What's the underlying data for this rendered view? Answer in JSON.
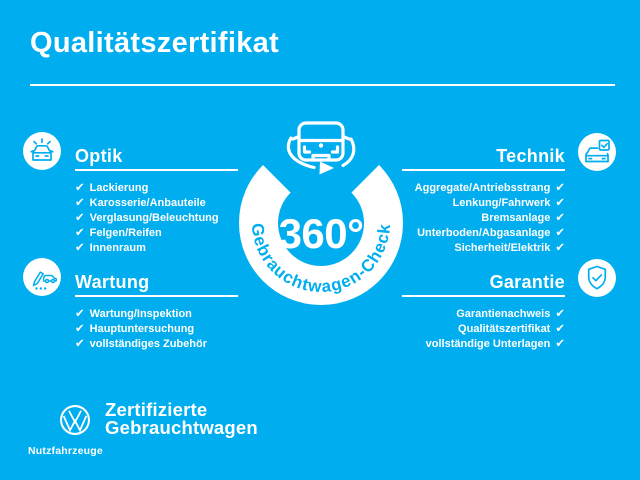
{
  "theme": {
    "background": "#00AEEF",
    "text": "#FFFFFF",
    "icon_stroke": "#00AEEF"
  },
  "checkmark": "✔",
  "header": {
    "title": "Qualitätszertifikat"
  },
  "center_badge": {
    "value": "360°",
    "ring_label": "Gebrauchtwagen-Check",
    "icon": "car-360-rotation-icon"
  },
  "sections": [
    {
      "id": "optik",
      "title": "Optik",
      "icon": "shiny-car-icon",
      "align": "left",
      "items": [
        "Lackierung",
        "Karosserie/Anbauteile",
        "Verglasung/Beleuchtung",
        "Felgen/Reifen",
        "Innenraum"
      ]
    },
    {
      "id": "technik",
      "title": "Technik",
      "icon": "car-checklist-icon",
      "align": "right",
      "items": [
        "Aggregate/Antriebsstrang",
        "Lenkung/Fahrwerk",
        "Bremsanlage",
        "Unterboden/Abgasanlage",
        "Sicherheit/Elektrik"
      ]
    },
    {
      "id": "wartung",
      "title": "Wartung",
      "icon": "service-pen-car-icon",
      "align": "left",
      "items": [
        "Wartung/Inspektion",
        "Hauptuntersuchung",
        "vollständiges Zubehör"
      ]
    },
    {
      "id": "garantie",
      "title": "Garantie",
      "icon": "shield-check-icon",
      "align": "right",
      "items": [
        "Garantienachweis",
        "Qualitätszertifikat",
        "vollständige Unterlagen"
      ]
    }
  ],
  "footer": {
    "logo": "vw-logo",
    "brand": "Nutzfahrzeuge",
    "label_line1": "Zertifizierte",
    "label_line2": "Gebrauchtwagen"
  }
}
